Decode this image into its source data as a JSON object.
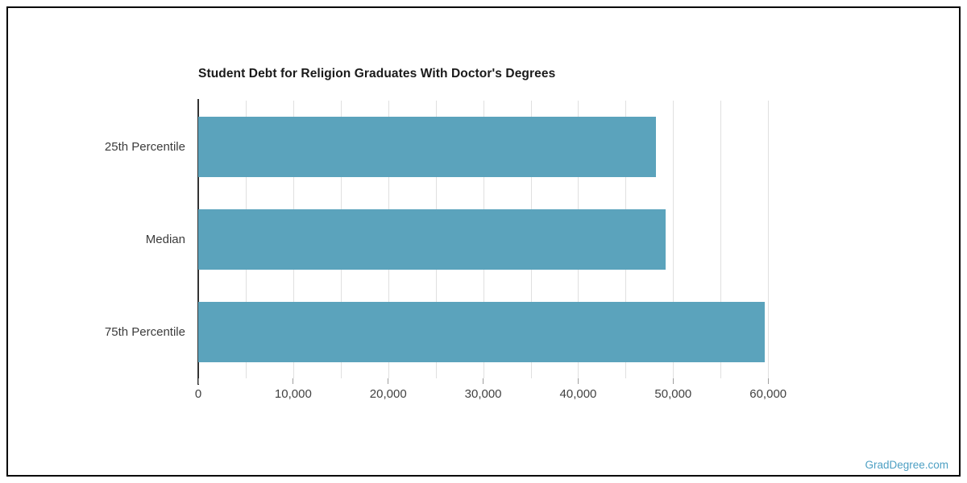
{
  "page": {
    "watermark": "GradDegree.com",
    "watermark_color": "#4D9FC3",
    "border_color": "#000000",
    "background_color": "#ffffff"
  },
  "chart_data": {
    "type": "bar",
    "orientation": "horizontal",
    "title": "Student Debt for Religion Graduates With Doctor's Degrees",
    "categories": [
      "25th Percentile",
      "Median",
      "75th Percentile"
    ],
    "values": [
      48150,
      49200,
      59650
    ],
    "xlabel": "",
    "ylabel": "",
    "xlim": [
      0,
      61000
    ],
    "x_major_ticks": [
      0,
      10000,
      20000,
      30000,
      40000,
      50000,
      60000
    ],
    "x_tick_labels": [
      "0",
      "10,000",
      "20,000",
      "30,000",
      "40,000",
      "50,000",
      "60,000"
    ],
    "x_minor_grid_step": 5000,
    "grid": true,
    "legend": false,
    "bar_color": "#5BA3BC",
    "grid_color": "#E0E0E0",
    "axis_color": "#333333",
    "tick_color": "#9E9E9E",
    "text_color": "#424242",
    "title_color": "#1A1A1A"
  }
}
